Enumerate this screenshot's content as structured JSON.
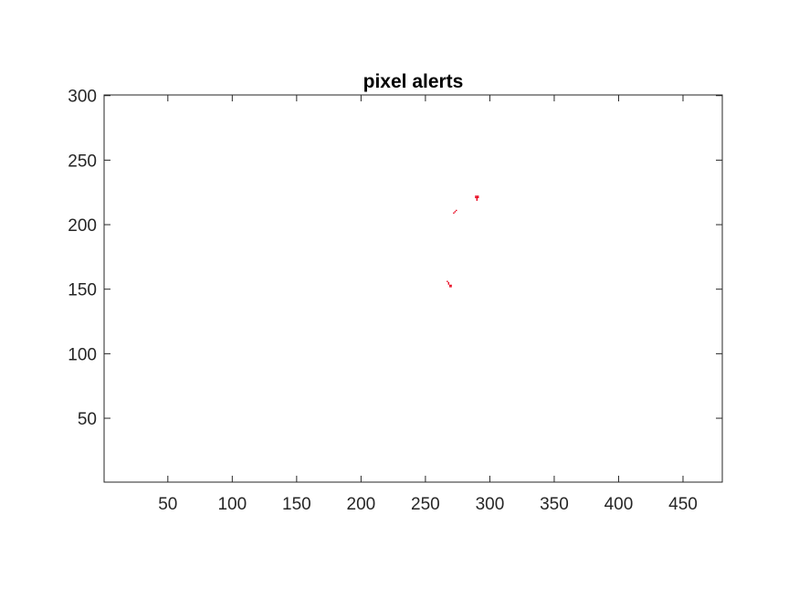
{
  "chart_data": {
    "type": "scatter",
    "title": "pixel alerts",
    "xlabel": "",
    "ylabel": "",
    "xlim": [
      0.5,
      480.5
    ],
    "ylim": [
      0.5,
      300.5
    ],
    "x_ticks": [
      50,
      100,
      150,
      200,
      250,
      300,
      350,
      400,
      450
    ],
    "y_ticks": [
      50,
      100,
      150,
      200,
      250,
      300
    ],
    "x_tick_labels": [
      "50",
      "100",
      "150",
      "200",
      "250",
      "300",
      "350",
      "400",
      "450"
    ],
    "y_tick_labels": [
      "50",
      "100",
      "150",
      "200",
      "250",
      "300"
    ],
    "grid": false,
    "box": true,
    "marker_color": "#e8001a",
    "series": [
      {
        "points": [
          {
            "x": 289,
            "y": 222
          },
          {
            "x": 290,
            "y": 222
          },
          {
            "x": 291,
            "y": 222
          },
          {
            "x": 289,
            "y": 221
          },
          {
            "x": 290,
            "y": 221
          },
          {
            "x": 291,
            "y": 221
          },
          {
            "x": 290,
            "y": 220
          },
          {
            "x": 290,
            "y": 219
          },
          {
            "x": 274,
            "y": 211
          },
          {
            "x": 273,
            "y": 210
          },
          {
            "x": 272,
            "y": 209
          },
          {
            "x": 267,
            "y": 156
          },
          {
            "x": 268,
            "y": 155
          },
          {
            "x": 268,
            "y": 154
          },
          {
            "x": 269,
            "y": 153
          },
          {
            "x": 270,
            "y": 153
          },
          {
            "x": 270,
            "y": 152
          },
          {
            "x": 269,
            "y": 152
          }
        ]
      }
    ]
  }
}
